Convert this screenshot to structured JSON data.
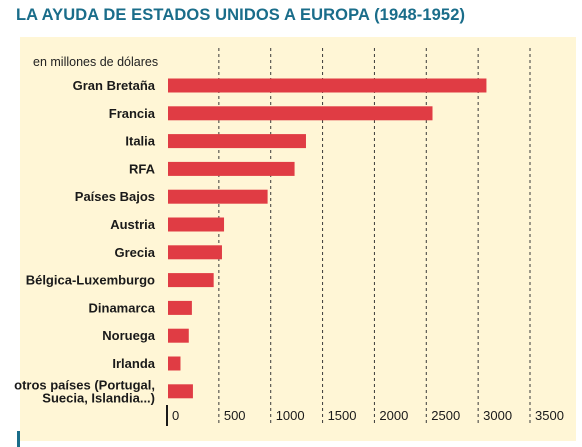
{
  "title": "LA AYUDA DE ESTADOS UNIDOS A EUROPA (1948-1952)",
  "chart_data": {
    "type": "bar",
    "orientation": "horizontal",
    "title": "LA AYUDA DE ESTADOS UNIDOS A EUROPA (1948-1952)",
    "unit_label": "en millones de dólares",
    "xlim": [
      0,
      3500
    ],
    "xticks": [
      0,
      500,
      1000,
      1500,
      2000,
      2500,
      3000,
      3500
    ],
    "xtick_labels": [
      "0",
      "500",
      "1000",
      "1500",
      "2000",
      "2500",
      "3000",
      "3500"
    ],
    "grid": "vertical dashed",
    "categories": [
      "Gran Bretaña",
      "Francia",
      "Italia",
      "RFA",
      "Países Bajos",
      "Austria",
      "Grecia",
      "Bélgica-Luxemburgo",
      "Dinamarca",
      "Noruega",
      "Irlanda",
      [
        "otros países (Portugal,",
        "Suecia, Islandia...)"
      ]
    ],
    "values": [
      3080,
      2560,
      1340,
      1230,
      970,
      550,
      530,
      450,
      240,
      210,
      130,
      250
    ],
    "colors": {
      "bar": "#e03c44",
      "grid": "#3a3a3a",
      "axis": "#1a1a1a",
      "panel": "#fff6d6",
      "title": "#1a6d8a"
    }
  }
}
